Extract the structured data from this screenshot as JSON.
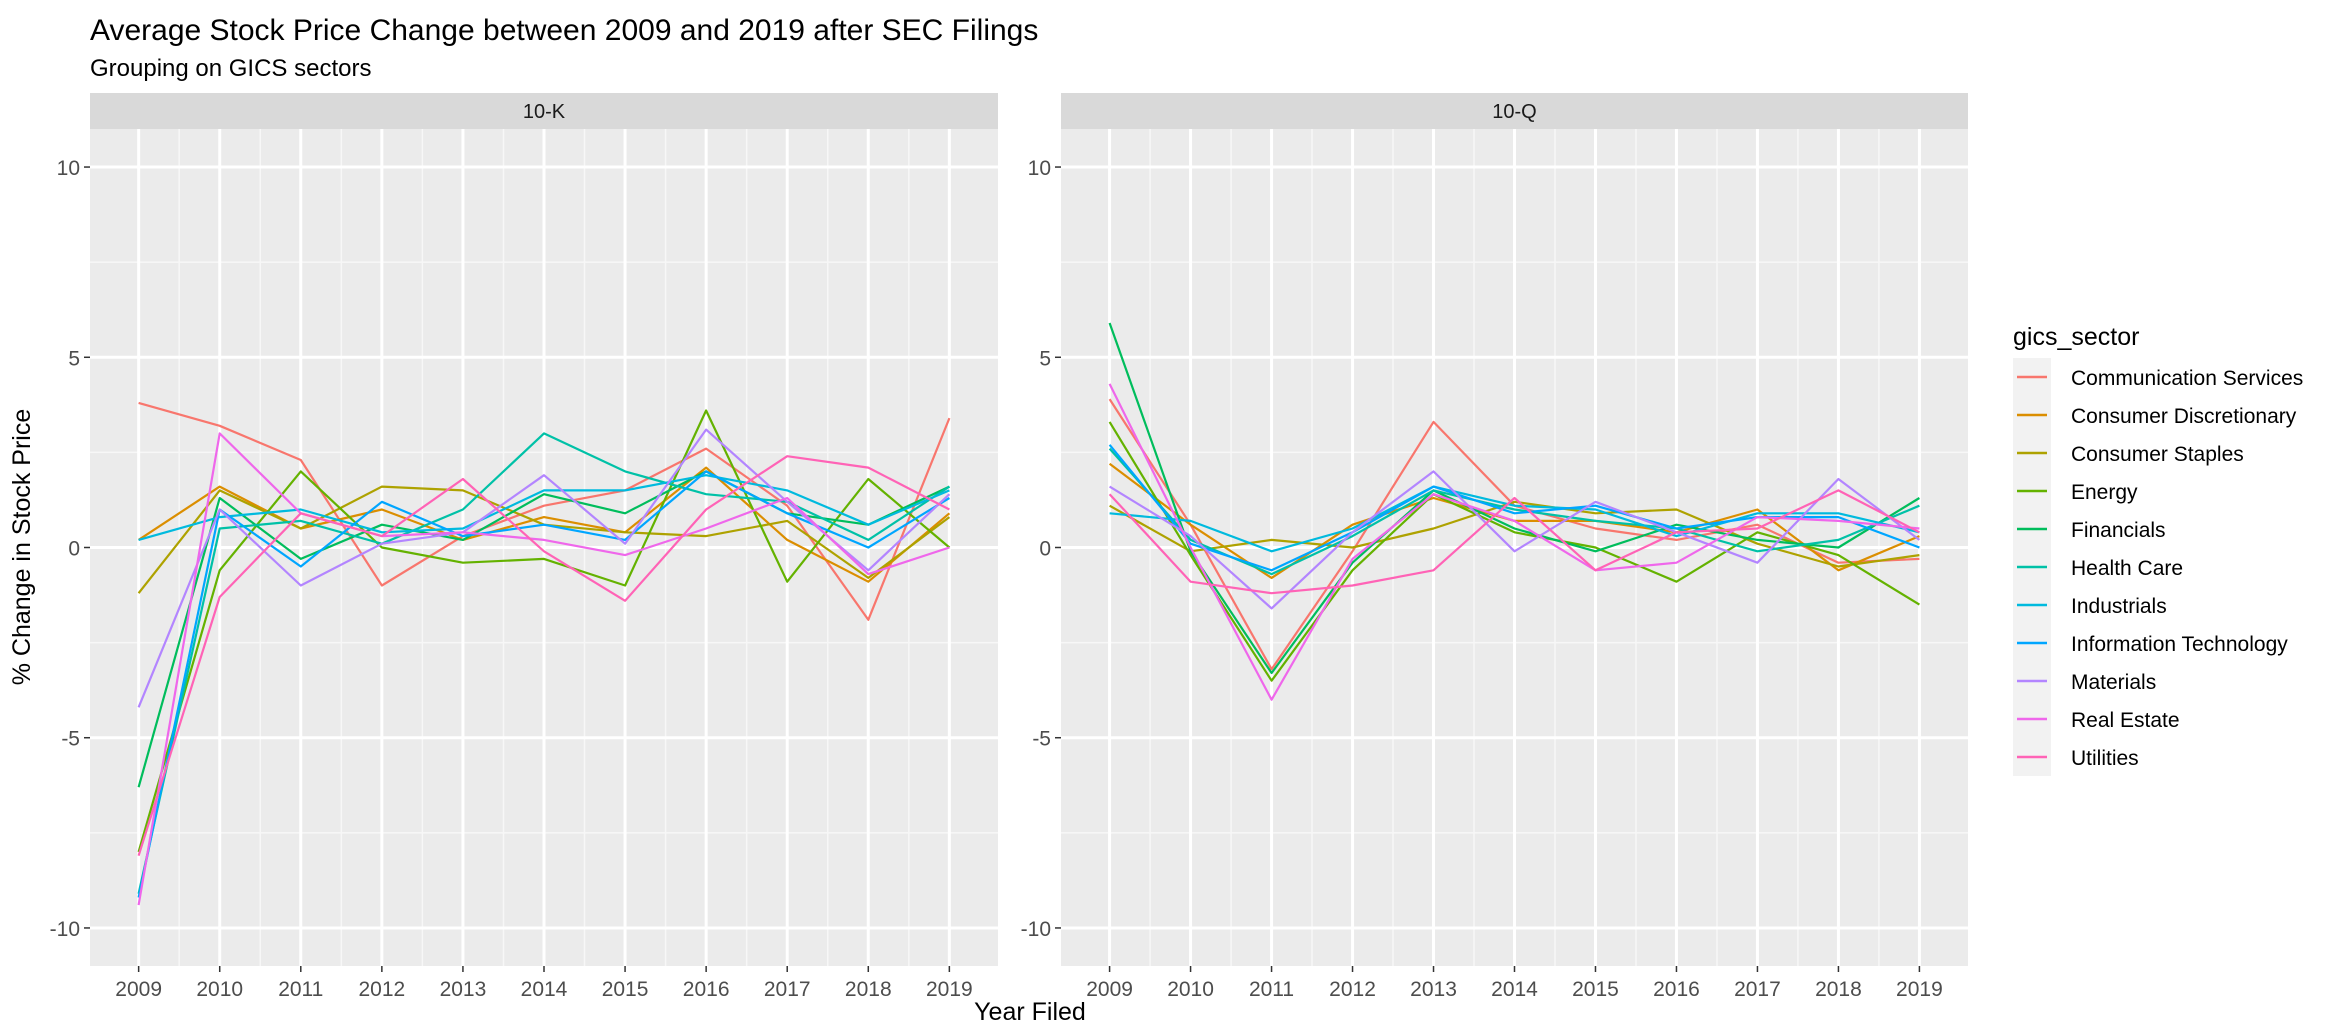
{
  "chart_data": {
    "type": "line",
    "title": "Average Stock Price Change between 2009 and 2019 after SEC Filings",
    "subtitle": "Grouping on GICS sectors",
    "xlabel": "Year Filed",
    "ylabel": "% Change in Stock Price",
    "x": [
      2009,
      2010,
      2011,
      2012,
      2013,
      2014,
      2015,
      2016,
      2017,
      2018,
      2019
    ],
    "x_ticks": [
      "2009",
      "2010",
      "2011",
      "2012",
      "2013",
      "2014",
      "2015",
      "2016",
      "2017",
      "2018",
      "2019"
    ],
    "ylim": [
      -11,
      11
    ],
    "y_ticks": [
      -10,
      -5,
      0,
      5,
      10
    ],
    "y_tick_labels": [
      "-10",
      "-5",
      "0",
      "5",
      "10"
    ],
    "grid": true,
    "legend": {
      "title": "gics_sector",
      "position": "right"
    },
    "panels": [
      {
        "title": "10-K",
        "series": [
          {
            "name": "Communication Services",
            "color": "#F8766D",
            "values": [
              3.8,
              3.2,
              2.3,
              -1.0,
              0.3,
              1.1,
              1.5,
              2.6,
              1.1,
              -1.9,
              3.4
            ]
          },
          {
            "name": "Consumer Discretionary",
            "color": "#DB8E00",
            "values": [
              0.2,
              1.6,
              0.5,
              1.0,
              0.2,
              0.8,
              0.4,
              2.1,
              0.2,
              -0.9,
              0.9
            ]
          },
          {
            "name": "Consumer Staples",
            "color": "#AEA200",
            "values": [
              -1.2,
              1.5,
              0.5,
              1.6,
              1.5,
              0.6,
              0.4,
              0.3,
              0.7,
              -0.8,
              0.8
            ]
          },
          {
            "name": "Energy",
            "color": "#64B200",
            "values": [
              -8.0,
              -0.6,
              2.0,
              0.0,
              -0.4,
              -0.3,
              -1.0,
              3.6,
              -0.9,
              1.8,
              0.0
            ]
          },
          {
            "name": "Financials",
            "color": "#00BD5C",
            "values": [
              -6.3,
              1.3,
              -0.3,
              0.6,
              0.2,
              1.4,
              0.9,
              2.0,
              0.9,
              0.6,
              1.6
            ]
          },
          {
            "name": "Health Care",
            "color": "#00C1A7",
            "values": [
              -9.1,
              0.5,
              0.7,
              0.1,
              1.0,
              3.0,
              2.0,
              1.4,
              1.2,
              0.2,
              1.6
            ]
          },
          {
            "name": "Industrials",
            "color": "#00BADE",
            "values": [
              0.2,
              0.8,
              1.0,
              0.4,
              0.5,
              1.5,
              1.5,
              1.9,
              1.5,
              0.6,
              1.5
            ]
          },
          {
            "name": "Information Technology",
            "color": "#00A6FF",
            "values": [
              -9.2,
              1.0,
              -0.5,
              1.2,
              0.3,
              0.6,
              0.2,
              2.0,
              0.9,
              0.0,
              1.3
            ]
          },
          {
            "name": "Materials",
            "color": "#B385FF",
            "values": [
              -4.2,
              1.0,
              -1.0,
              0.1,
              0.4,
              1.9,
              0.1,
              3.1,
              1.2,
              -0.6,
              1.4
            ]
          },
          {
            "name": "Real Estate",
            "color": "#EF67EB",
            "values": [
              -9.4,
              3.0,
              0.9,
              0.3,
              0.4,
              0.2,
              -0.2,
              0.5,
              1.3,
              -0.7,
              0.0
            ]
          },
          {
            "name": "Utilities",
            "color": "#FF63B6",
            "values": [
              -8.1,
              -1.3,
              0.9,
              0.3,
              1.8,
              -0.1,
              -1.4,
              1.0,
              2.4,
              2.1,
              1.0
            ]
          }
        ]
      },
      {
        "title": "10-Q",
        "series": [
          {
            "name": "Communication Services",
            "color": "#F8766D",
            "values": [
              3.9,
              0.6,
              -3.2,
              -0.1,
              3.3,
              1.1,
              0.5,
              0.2,
              0.6,
              -0.4,
              -0.3
            ]
          },
          {
            "name": "Consumer Discretionary",
            "color": "#DB8E00",
            "values": [
              2.2,
              0.6,
              -0.8,
              0.6,
              1.3,
              0.7,
              0.7,
              0.4,
              1.0,
              -0.6,
              0.3
            ]
          },
          {
            "name": "Consumer Staples",
            "color": "#AEA200",
            "values": [
              1.1,
              -0.1,
              0.2,
              0.0,
              0.5,
              1.2,
              0.9,
              1.0,
              0.1,
              -0.5,
              -0.2
            ]
          },
          {
            "name": "Energy",
            "color": "#64B200",
            "values": [
              3.3,
              -0.2,
              -3.5,
              -0.6,
              1.4,
              0.4,
              0.0,
              -0.9,
              0.4,
              -0.2,
              -1.5
            ]
          },
          {
            "name": "Financials",
            "color": "#00BD5C",
            "values": [
              5.9,
              -0.1,
              -3.3,
              -0.4,
              1.5,
              0.5,
              -0.1,
              0.6,
              0.2,
              0.0,
              1.3
            ]
          },
          {
            "name": "Health Care",
            "color": "#00C1A7",
            "values": [
              2.6,
              0.2,
              -0.7,
              0.3,
              1.5,
              1.0,
              0.7,
              0.5,
              -0.1,
              0.2,
              1.1
            ]
          },
          {
            "name": "Industrials",
            "color": "#00BADE",
            "values": [
              0.9,
              0.7,
              -0.1,
              0.5,
              1.6,
              1.1,
              1.0,
              0.3,
              0.9,
              0.9,
              0.4
            ]
          },
          {
            "name": "Information Technology",
            "color": "#00A6FF",
            "values": [
              2.7,
              0.1,
              -0.6,
              0.4,
              1.6,
              0.9,
              1.1,
              0.5,
              0.8,
              0.8,
              0.0
            ]
          },
          {
            "name": "Materials",
            "color": "#B385FF",
            "values": [
              1.6,
              0.3,
              -1.6,
              0.4,
              2.0,
              -0.1,
              1.2,
              0.4,
              -0.4,
              1.8,
              0.2
            ]
          },
          {
            "name": "Real Estate",
            "color": "#EF67EB",
            "values": [
              4.3,
              0.0,
              -4.0,
              -0.3,
              1.4,
              0.7,
              -0.6,
              -0.4,
              0.8,
              0.7,
              0.5
            ]
          },
          {
            "name": "Utilities",
            "color": "#FF63B6",
            "values": [
              1.4,
              -0.9,
              -1.2,
              -1.0,
              -0.6,
              1.3,
              -0.6,
              0.4,
              0.5,
              1.5,
              0.4
            ]
          }
        ]
      }
    ]
  }
}
